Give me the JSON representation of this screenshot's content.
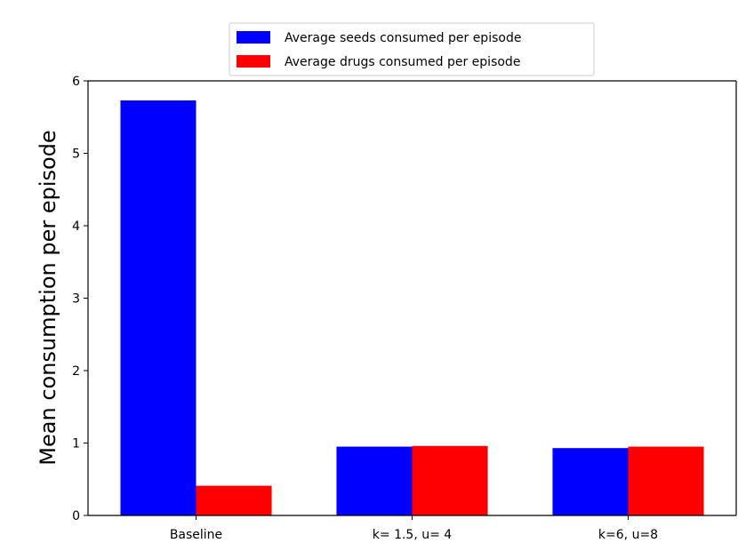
{
  "chart_data": {
    "type": "bar",
    "title": "",
    "xlabel": "",
    "ylabel": "Mean consumption per episode",
    "ylim": [
      0,
      6
    ],
    "yticks": [
      0,
      1,
      2,
      3,
      4,
      5,
      6
    ],
    "categories": [
      "Baseline",
      "k= 1.5, u= 4",
      "k=6, u=8"
    ],
    "series": [
      {
        "name": "Average seeds consumed per episode",
        "color": "#0000ff",
        "values": [
          5.73,
          0.95,
          0.93
        ]
      },
      {
        "name": "Average drugs consumed per episode",
        "color": "#ff0000",
        "values": [
          0.41,
          0.96,
          0.95
        ]
      }
    ],
    "legend": "upper-center",
    "grid": false
  }
}
